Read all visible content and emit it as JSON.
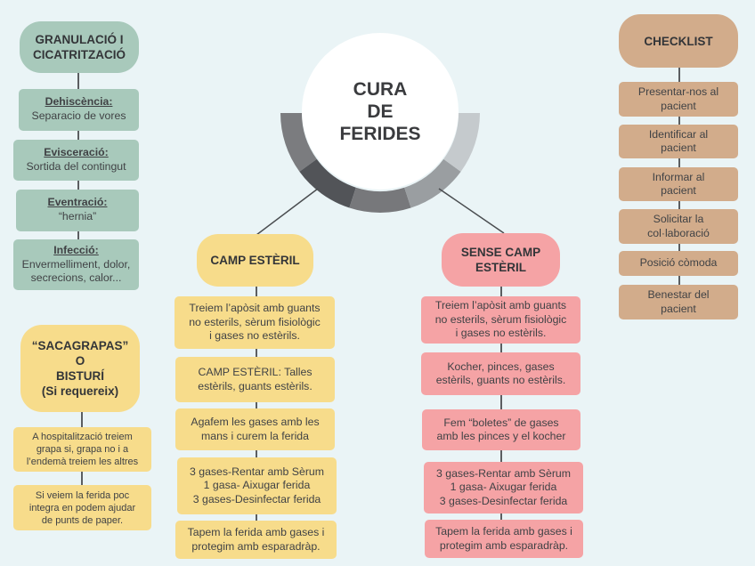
{
  "center": {
    "title": "CURA\nDE\nFERIDES",
    "arc_colors": [
      "#7b7c7f",
      "#525458",
      "#77787b",
      "#9a9ea1",
      "#c5cacd"
    ]
  },
  "granulacio": {
    "title": "GRANULACIÓ I\nCICATRITZACIÓ",
    "color": "#a8c9bb",
    "items": [
      {
        "head": "Dehiscència:",
        "text": "Separacio de vores"
      },
      {
        "head": "Evisceració:",
        "text": "Sortida del contingut"
      },
      {
        "head": "Eventració:",
        "text": "“hernia”"
      },
      {
        "head": "Infecció:",
        "text": "Envermelliment, dolor,\nsecrecions, calor..."
      }
    ]
  },
  "sacagrapas": {
    "title": "“SACAGRAPAS”\nO\nBISTURÍ\n(Si requereix)",
    "color": "#f7dc8b",
    "items": [
      "A hospitalització treiem\ngrapa si, grapa no i a\nl’endemà treiem les altres",
      "Si veiem la ferida poc\nintegra en podem ajudar\nde punts de paper."
    ]
  },
  "camp_esteril": {
    "title": "CAMP ESTÈRIL",
    "color": "#f7dc8b",
    "items": [
      "Treiem l’apòsit amb guants\nno esterils, sèrum fisiològic\ni gases no estèrils.",
      "CAMP ESTÈRIL: Talles\nestèrils, guants estèrils.",
      "Agafem les gases amb les\nmans i curem la ferida",
      "3 gases-Rentar amb Sèrum\n1 gasa- Aixugar ferida\n3 gases-Desinfectar ferida",
      "Tapem la ferida amb gases i\nprotegim amb esparadràp."
    ]
  },
  "sense_camp": {
    "title": "SENSE CAMP\nESTÈRIL",
    "color": "#f5a3a5",
    "items": [
      "Treiem l’apòsit amb guants\nno esterils, sèrum fisiològic\ni gases no estèrils.",
      "Kocher, pinces, gases\nestèrils, guants no estèrils.",
      "Fem “boletes” de gases\namb les pinces y el kocher",
      "3 gases-Rentar amb Sèrum\n1 gasa- Aixugar ferida\n3 gases-Desinfectar ferida",
      "Tapem la ferida amb gases i\nprotegim amb esparadràp."
    ]
  },
  "checklist": {
    "title": "CHECKLIST",
    "color": "#d2ac8b",
    "items": [
      "Presentar-nos al\npacient",
      "Identificar al\npacient",
      "Informar al\npacient",
      "Solicitar la\ncol·laboració",
      "Posició còmoda",
      "Benestar del\npacient"
    ]
  }
}
